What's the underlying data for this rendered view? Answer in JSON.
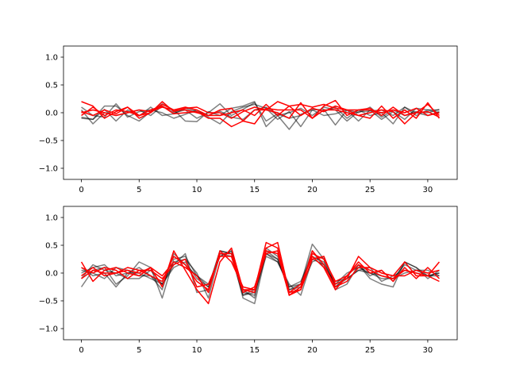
{
  "chart_data": [
    {
      "type": "line",
      "title": "",
      "xlabel": "",
      "ylabel": "",
      "xlim": [
        -1.55,
        32.55
      ],
      "ylim": [
        -1.2,
        1.2
      ],
      "xticks": [
        0,
        5,
        10,
        15,
        20,
        25,
        30
      ],
      "yticks": [
        -1.0,
        -0.5,
        0.0,
        0.5,
        1.0
      ],
      "xtick_labels": [
        "0",
        "5",
        "10",
        "15",
        "20",
        "25",
        "30"
      ],
      "ytick_labels": [
        "−1.0",
        "−0.5",
        "0.0",
        "0.5",
        "1.0"
      ],
      "grid": false,
      "series_colors": {
        "gray": "#000000",
        "red": "#ff0000"
      },
      "series": [
        {
          "color": "gray",
          "values": [
            -0.1,
            -0.12,
            0.12,
            0.12,
            -0.05,
            -0.15,
            0.02,
            0.16,
            0.05,
            -0.15,
            -0.16,
            0.02,
            -0.05,
            0.08,
            0.12,
            0.2,
            -0.25,
            -0.05,
            -0.3,
            -0.03,
            0.05,
            -0.05,
            -0.02,
            0.05,
            -0.15,
            0.05,
            -0.12,
            0.02,
            -0.12,
            0.08,
            0.05,
            0.05
          ]
        },
        {
          "color": "gray",
          "values": [
            0.05,
            -0.2,
            0.0,
            -0.05,
            0.0,
            0.05,
            -0.05,
            0.12,
            0.0,
            0.05,
            -0.1,
            0.0,
            0.16,
            -0.05,
            0.06,
            0.18,
            -0.15,
            -0.02,
            -0.1,
            -0.05,
            0.08,
            0.02,
            0.1,
            -0.1,
            0.05,
            -0.05,
            0.0,
            -0.2,
            0.1,
            -0.05,
            0.05,
            0.0
          ]
        },
        {
          "color": "gray",
          "values": [
            0.1,
            -0.05,
            -0.08,
            0.16,
            -0.08,
            0.02,
            0.05,
            0.0,
            -0.1,
            -0.03,
            0.05,
            -0.08,
            -0.2,
            0.02,
            0.1,
            0.15,
            0.08,
            -0.12,
            0.02,
            -0.25,
            0.05,
            0.06,
            -0.22,
            0.05,
            0.0,
            0.1,
            -0.08,
            0.05,
            -0.05,
            0.02,
            0.0,
            0.06
          ]
        },
        {
          "color": "gray",
          "values": [
            -0.08,
            -0.12,
            0.06,
            -0.15,
            0.05,
            -0.06,
            0.1,
            -0.05,
            -0.02,
            0.08,
            0.02,
            -0.05,
            0.03,
            -0.08,
            -0.12,
            0.05,
            0.1,
            -0.05,
            0.0,
            0.08,
            -0.05,
            0.1,
            0.05,
            -0.15,
            0.02,
            0.03,
            0.05,
            -0.05,
            0.1,
            0.0,
            -0.05,
            0.02
          ]
        },
        {
          "color": "red",
          "values": [
            0.2,
            0.12,
            -0.1,
            0.02,
            0.1,
            -0.1,
            0.0,
            0.2,
            0.02,
            0.08,
            0.1,
            0.0,
            0.0,
            -0.1,
            0.02,
            0.1,
            0.05,
            0.2,
            0.12,
            -0.05,
            0.08,
            0.02,
            0.12,
            0.05,
            -0.05,
            -0.1,
            0.12,
            -0.1,
            0.05,
            -0.1,
            0.18,
            -0.1
          ]
        },
        {
          "color": "red",
          "values": [
            -0.05,
            0.1,
            -0.05,
            0.05,
            0.02,
            -0.05,
            0.05,
            0.12,
            -0.02,
            0.0,
            0.02,
            -0.1,
            -0.1,
            -0.25,
            -0.15,
            0.05,
            0.05,
            0.0,
            -0.1,
            0.18,
            -0.1,
            0.05,
            0.05,
            0.0,
            -0.05,
            0.0,
            0.05,
            0.02,
            -0.2,
            0.0,
            0.15,
            -0.05
          ]
        },
        {
          "color": "red",
          "values": [
            0.02,
            -0.05,
            0.05,
            -0.02,
            0.1,
            -0.05,
            0.0,
            0.15,
            0.05,
            0.05,
            0.0,
            -0.05,
            0.05,
            0.08,
            -0.15,
            -0.2,
            0.08,
            0.05,
            0.05,
            0.05,
            -0.1,
            0.12,
            0.22,
            -0.05,
            0.05,
            0.08,
            -0.05,
            0.1,
            -0.05,
            0.0,
            0.02,
            -0.08
          ]
        },
        {
          "color": "red",
          "values": [
            0.0,
            0.05,
            0.0,
            -0.05,
            0.0,
            0.05,
            0.02,
            0.1,
            0.05,
            0.1,
            0.05,
            -0.05,
            -0.05,
            0.0,
            0.05,
            -0.05,
            0.15,
            -0.05,
            0.12,
            0.15,
            0.1,
            0.15,
            0.08,
            0.05,
            0.05,
            0.05,
            0.0,
            0.05,
            0.0,
            0.08,
            -0.05,
            0.0
          ]
        }
      ]
    },
    {
      "type": "line",
      "title": "",
      "xlabel": "",
      "ylabel": "",
      "xlim": [
        -1.55,
        32.55
      ],
      "ylim": [
        -1.2,
        1.2
      ],
      "xticks": [
        0,
        5,
        10,
        15,
        20,
        25,
        30
      ],
      "yticks": [
        -1.0,
        -0.5,
        0.0,
        0.5,
        1.0
      ],
      "xtick_labels": [
        "0",
        "5",
        "10",
        "15",
        "20",
        "25",
        "30"
      ],
      "ytick_labels": [
        "−1.0",
        "−0.5",
        "0.0",
        "0.5",
        "1.0"
      ],
      "grid": false,
      "series_colors": {
        "gray": "#000000",
        "red": "#ff0000"
      },
      "series": [
        {
          "color": "gray",
          "values": [
            -0.25,
            0.05,
            0.1,
            -0.2,
            -0.05,
            0.2,
            0.1,
            -0.45,
            0.25,
            0.3,
            -0.05,
            -0.25,
            0.4,
            0.35,
            -0.45,
            -0.55,
            0.35,
            0.25,
            -0.3,
            -0.2,
            0.52,
            0.25,
            -0.3,
            -0.2,
            0.15,
            -0.05,
            0.05,
            -0.15,
            0.2,
            0.1,
            -0.1,
            0.05
          ]
        },
        {
          "color": "gray",
          "values": [
            0.0,
            0.1,
            0.15,
            -0.05,
            0.0,
            0.1,
            -0.05,
            -0.3,
            0.35,
            0.15,
            -0.05,
            -0.2,
            0.3,
            0.4,
            -0.35,
            -0.4,
            0.45,
            0.3,
            -0.25,
            -0.15,
            0.3,
            0.2,
            -0.25,
            -0.1,
            0.05,
            0.1,
            -0.15,
            -0.05,
            0.05,
            0.0,
            -0.05,
            0.0
          ]
        },
        {
          "color": "gray",
          "values": [
            -0.1,
            0.15,
            0.05,
            0.0,
            -0.1,
            -0.1,
            0.05,
            -0.2,
            0.2,
            0.25,
            0.0,
            -0.45,
            0.35,
            0.3,
            -0.4,
            -0.35,
            0.3,
            0.2,
            -0.2,
            -0.4,
            0.25,
            0.15,
            -0.2,
            0.0,
            0.1,
            0.0,
            -0.05,
            -0.1,
            0.0,
            0.05,
            0.05,
            -0.05
          ]
        },
        {
          "color": "gray",
          "values": [
            0.05,
            0.0,
            -0.1,
            0.1,
            0.05,
            -0.05,
            -0.05,
            -0.2,
            0.15,
            0.35,
            -0.35,
            -0.3,
            0.4,
            0.35,
            -0.4,
            -0.3,
            0.35,
            0.2,
            -0.25,
            -0.2,
            0.4,
            0.1,
            -0.15,
            -0.1,
            0.05,
            0.0,
            -0.1,
            -0.1,
            0.15,
            0.05,
            -0.05,
            0.0
          ]
        },
        {
          "color": "gray",
          "values": [
            0.1,
            -0.05,
            0.0,
            -0.25,
            0.0,
            0.0,
            -0.1,
            -0.2,
            0.1,
            0.2,
            -0.1,
            -0.25,
            0.3,
            0.4,
            -0.3,
            -0.45,
            0.4,
            0.25,
            -0.3,
            -0.25,
            0.2,
            0.3,
            -0.25,
            -0.05,
            0.15,
            -0.1,
            -0.2,
            -0.25,
            0.2,
            0.1,
            -0.05,
            -0.05
          ]
        },
        {
          "color": "red",
          "values": [
            0.2,
            -0.15,
            0.05,
            0.1,
            0.0,
            -0.05,
            0.1,
            -0.25,
            0.4,
            0.05,
            -0.3,
            -0.55,
            0.2,
            0.45,
            -0.3,
            -0.3,
            0.55,
            0.45,
            -0.4,
            -0.3,
            0.25,
            0.3,
            -0.2,
            -0.1,
            0.3,
            0.1,
            0.0,
            -0.05,
            0.2,
            -0.05,
            -0.05,
            0.2
          ]
        },
        {
          "color": "red",
          "values": [
            -0.1,
            0.05,
            0.0,
            0.0,
            0.1,
            0.05,
            -0.05,
            -0.15,
            0.3,
            0.15,
            -0.15,
            -0.3,
            0.35,
            0.35,
            -0.3,
            -0.35,
            0.45,
            0.55,
            -0.35,
            -0.2,
            0.3,
            0.1,
            -0.3,
            -0.05,
            0.2,
            0.0,
            0.05,
            -0.15,
            0.1,
            -0.1,
            0.1,
            -0.1
          ]
        },
        {
          "color": "red",
          "values": [
            0.1,
            0.0,
            0.1,
            0.05,
            -0.1,
            0.05,
            0.05,
            -0.1,
            0.15,
            0.25,
            -0.25,
            -0.2,
            0.3,
            0.3,
            -0.35,
            -0.25,
            0.4,
            0.35,
            -0.4,
            -0.25,
            0.35,
            0.25,
            -0.15,
            -0.05,
            0.15,
            0.05,
            -0.05,
            -0.1,
            0.05,
            0.0,
            -0.05,
            -0.15
          ]
        },
        {
          "color": "red",
          "values": [
            -0.05,
            0.1,
            -0.05,
            0.0,
            0.05,
            0.0,
            0.1,
            -0.05,
            0.2,
            0.1,
            -0.05,
            -0.35,
            0.4,
            0.2,
            -0.25,
            -0.3,
            0.35,
            0.4,
            -0.35,
            -0.3,
            0.4,
            0.15,
            -0.25,
            -0.15,
            0.1,
            0.1,
            0.0,
            -0.05,
            -0.05,
            0.05,
            0.0,
            0.05
          ]
        }
      ]
    }
  ]
}
